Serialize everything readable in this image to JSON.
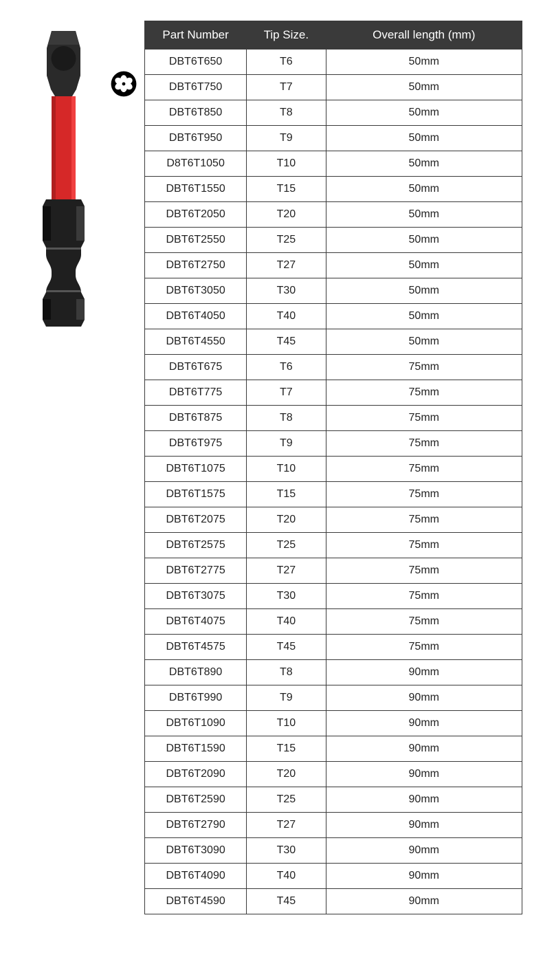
{
  "table": {
    "header_bg": "#3a3a3a",
    "header_color": "#ffffff",
    "border_color": "#3a3a3a",
    "cell_color": "#222222",
    "columns": [
      "Part Number",
      "Tip Size.",
      "Overall length (mm)"
    ],
    "rows": [
      [
        "DBT6T650",
        "T6",
        "50mm"
      ],
      [
        "DBT6T750",
        "T7",
        "50mm"
      ],
      [
        "DBT6T850",
        "T8",
        "50mm"
      ],
      [
        "DBT6T950",
        "T9",
        "50mm"
      ],
      [
        "D8T6T1050",
        "T10",
        "50mm"
      ],
      [
        "DBT6T1550",
        "T15",
        "50mm"
      ],
      [
        "DBT6T2050",
        "T20",
        "50mm"
      ],
      [
        "DBT6T2550",
        "T25",
        "50mm"
      ],
      [
        "DBT6T2750",
        "T27",
        "50mm"
      ],
      [
        "DBT6T3050",
        "T30",
        "50mm"
      ],
      [
        "DBT6T4050",
        "T40",
        "50mm"
      ],
      [
        "DBT6T4550",
        "T45",
        "50mm"
      ],
      [
        "DBT6T675",
        "T6",
        "75mm"
      ],
      [
        "DBT6T775",
        "T7",
        "75mm"
      ],
      [
        "DBT6T875",
        "T8",
        "75mm"
      ],
      [
        "DBT6T975",
        "T9",
        "75mm"
      ],
      [
        "DBT6T1075",
        "T10",
        "75mm"
      ],
      [
        "DBT6T1575",
        "T15",
        "75mm"
      ],
      [
        "DBT6T2075",
        "T20",
        "75mm"
      ],
      [
        "DBT6T2575",
        "T25",
        "75mm"
      ],
      [
        "DBT6T2775",
        "T27",
        "75mm"
      ],
      [
        "DBT6T3075",
        "T30",
        "75mm"
      ],
      [
        "DBT6T4075",
        "T40",
        "75mm"
      ],
      [
        "DBT6T4575",
        "T45",
        "75mm"
      ],
      [
        "DBT6T890",
        "T8",
        "90mm"
      ],
      [
        "DBT6T990",
        "T9",
        "90mm"
      ],
      [
        "DBT6T1090",
        "T10",
        "90mm"
      ],
      [
        "DBT6T1590",
        "T15",
        "90mm"
      ],
      [
        "DBT6T2090",
        "T20",
        "90mm"
      ],
      [
        "DBT6T2590",
        "T25",
        "90mm"
      ],
      [
        "DBT6T2790",
        "T27",
        "90mm"
      ],
      [
        "DBT6T3090",
        "T30",
        "90mm"
      ],
      [
        "DBT6T4090",
        "T40",
        "90mm"
      ],
      [
        "DBT6T4590",
        "T45",
        "90mm"
      ]
    ]
  },
  "product_image": {
    "name": "screwdriver-bit",
    "colors": {
      "tip": "#2a2a2a",
      "shaft": "#d62828",
      "hex": "#1f1f1f",
      "highlight": "#555555"
    }
  },
  "torx_icon": {
    "name": "torx-star-icon",
    "color": "#000000"
  }
}
